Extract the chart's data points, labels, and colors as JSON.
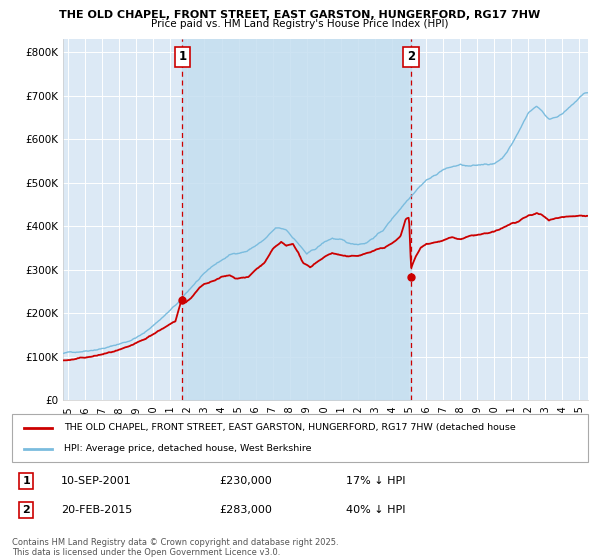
{
  "title_line1": "THE OLD CHAPEL, FRONT STREET, EAST GARSTON, HUNGERFORD, RG17 7HW",
  "title_line2": "Price paid vs. HM Land Registry's House Price Index (HPI)",
  "background_color": "#dce9f5",
  "plot_bg_color": "#dce9f5",
  "hpi_color": "#7bbcde",
  "price_color": "#cc0000",
  "dashed_line_color": "#cc0000",
  "fill_color": "#c5dff0",
  "ylabel_ticks": [
    "£0",
    "£100K",
    "£200K",
    "£300K",
    "£400K",
    "£500K",
    "£600K",
    "£700K",
    "£800K"
  ],
  "ytick_values": [
    0,
    100000,
    200000,
    300000,
    400000,
    500000,
    600000,
    700000,
    800000
  ],
  "ylim": [
    0,
    830000
  ],
  "xlim_start": 1994.7,
  "xlim_end": 2025.5,
  "xtick_years": [
    1995,
    1996,
    1997,
    1998,
    1999,
    2000,
    2001,
    2002,
    2003,
    2004,
    2005,
    2006,
    2007,
    2008,
    2009,
    2010,
    2011,
    2012,
    2013,
    2014,
    2015,
    2016,
    2017,
    2018,
    2019,
    2020,
    2021,
    2022,
    2023,
    2024,
    2025
  ],
  "marker1_x": 2001.7,
  "marker1_y": 230000,
  "marker1_label": "1",
  "marker1_date": "10-SEP-2001",
  "marker1_price": "£230,000",
  "marker1_hpi": "17% ↓ HPI",
  "marker2_x": 2015.12,
  "marker2_y": 283000,
  "marker2_label": "2",
  "marker2_date": "20-FEB-2015",
  "marker2_price": "£283,000",
  "marker2_hpi": "40% ↓ HPI",
  "legend_line1": "THE OLD CHAPEL, FRONT STREET, EAST GARSTON, HUNGERFORD, RG17 7HW (detached house",
  "legend_line2": "HPI: Average price, detached house, West Berkshire",
  "footnote": "Contains HM Land Registry data © Crown copyright and database right 2025.\nThis data is licensed under the Open Government Licence v3.0."
}
